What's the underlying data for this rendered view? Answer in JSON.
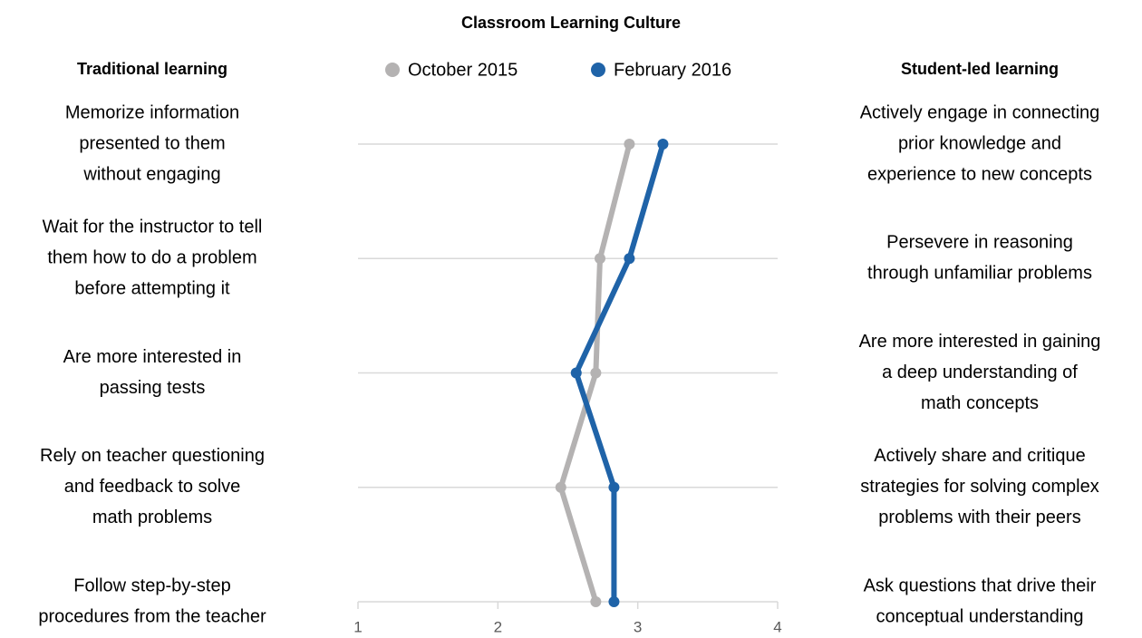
{
  "chart_data": {
    "type": "line",
    "orientation": "horizontal",
    "title": "Classroom Learning Culture",
    "left_header": "Traditional learning",
    "right_header": "Student-led learning",
    "categories": [
      [
        "Memorize information",
        "presented to them",
        "without engaging"
      ],
      [
        "Wait for the instructor to tell",
        "them how to do a problem",
        "before attempting it"
      ],
      [
        "Are more interested in",
        "passing tests"
      ],
      [
        "Rely on teacher questioning",
        "and feedback to solve",
        "math problems"
      ],
      [
        "Follow step-by-step",
        "procedures from the teacher"
      ]
    ],
    "right_categories": [
      [
        "Actively engage in connecting",
        "prior knowledge and",
        "experience to new concepts"
      ],
      [
        "Persevere in reasoning",
        "through unfamiliar problems"
      ],
      [
        "Are more interested in gaining",
        "a deep understanding of",
        "math concepts"
      ],
      [
        "Actively share and critique",
        "strategies for solving complex",
        "problems with their peers"
      ],
      [
        "Ask questions that drive their",
        "conceptual understanding"
      ]
    ],
    "series": [
      {
        "name": "October 2015",
        "color": "#b4b2b2",
        "values": [
          2.94,
          2.73,
          2.7,
          2.45,
          2.7
        ]
      },
      {
        "name": "February 2016",
        "color": "#1f63a8",
        "values": [
          3.18,
          2.94,
          2.56,
          2.83,
          2.83
        ]
      }
    ],
    "xlim": [
      1,
      4
    ],
    "xticks": [
      1,
      2,
      3,
      4
    ],
    "grid": true
  }
}
